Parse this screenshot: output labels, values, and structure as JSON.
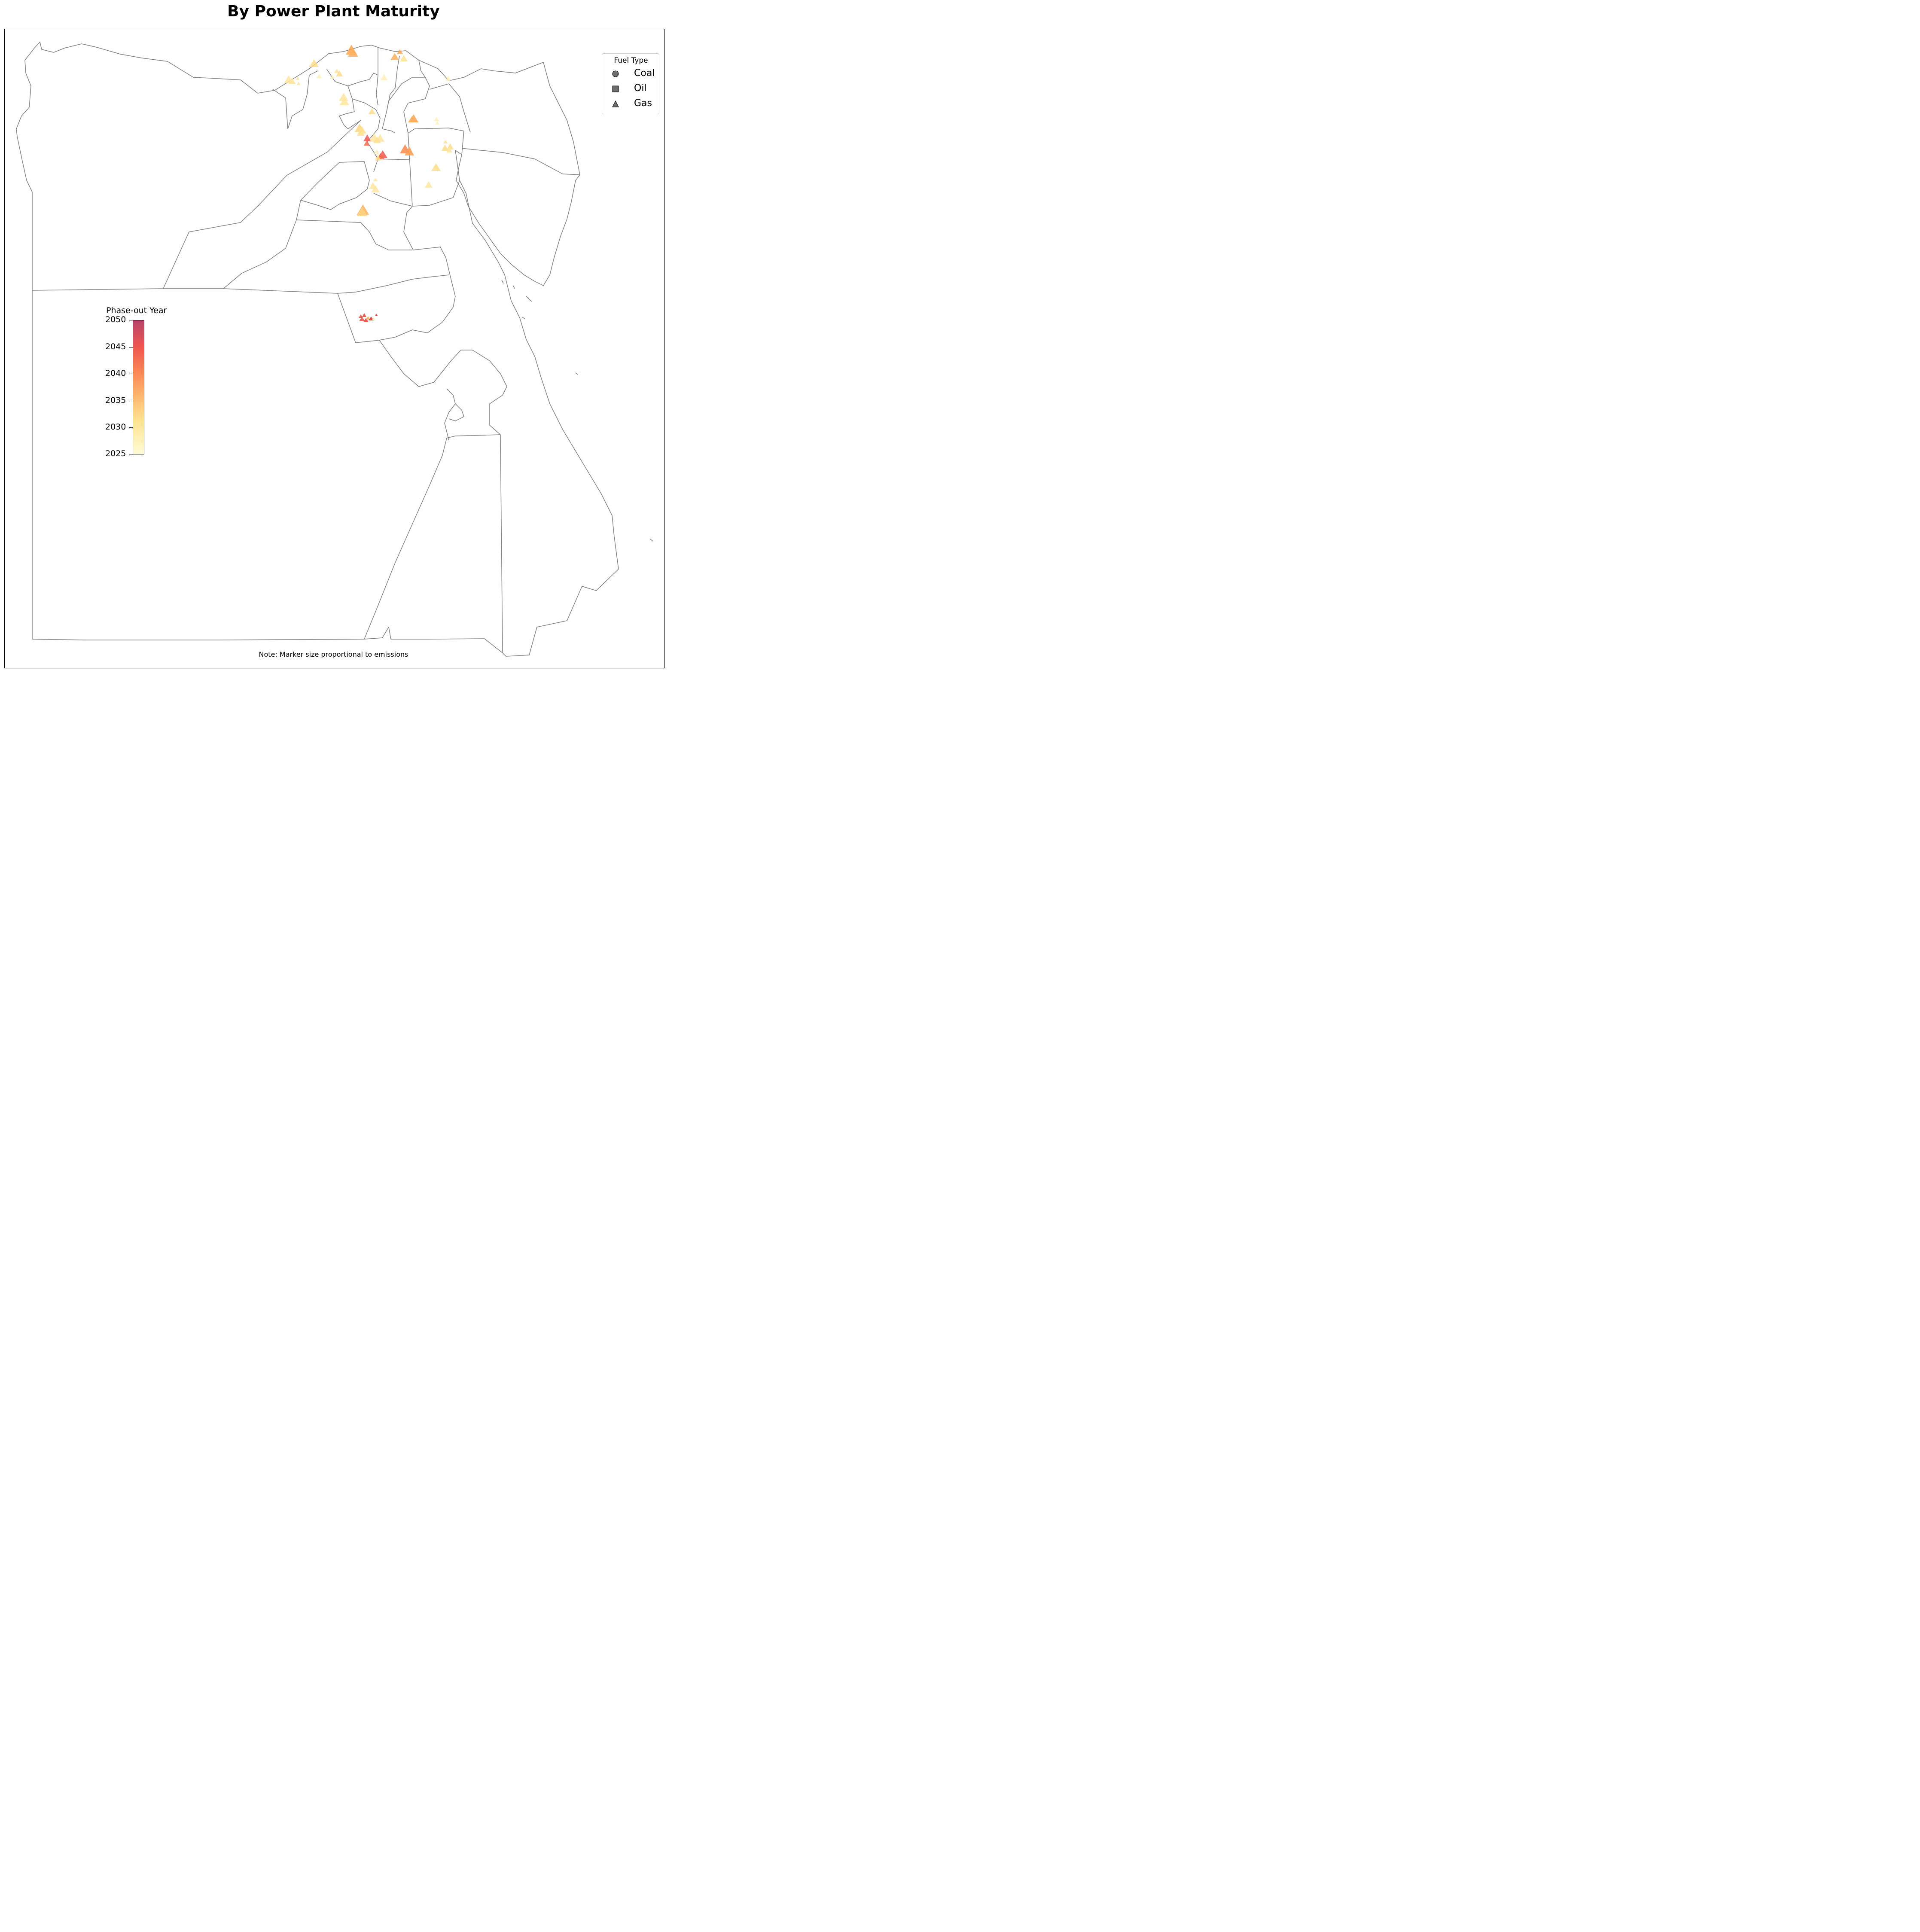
{
  "title": "By Power Plant Maturity",
  "note": "Note: Marker size proportional to emissions",
  "legend": {
    "title": "Fuel Type",
    "items": [
      {
        "label": "Coal",
        "icon": "circle-marker-icon"
      },
      {
        "label": "Oil",
        "icon": "square-marker-icon"
      },
      {
        "label": "Gas",
        "icon": "triangle-marker-icon"
      }
    ]
  },
  "colorbar": {
    "title": "Phase-out Year",
    "range": [
      2025,
      2050
    ],
    "ticks": [
      "2050",
      "2045",
      "2040",
      "2035",
      "2030",
      "2025"
    ],
    "colors": [
      "#fffbd5",
      "#fee391",
      "#fdb26a",
      "#fb8a56",
      "#f0564f",
      "#b8436a"
    ]
  },
  "map": {
    "region": "Egypt governorates",
    "boundary_color": "#808080",
    "marker_fuel": "Gas",
    "marker_opacity": 0.8
  }
}
